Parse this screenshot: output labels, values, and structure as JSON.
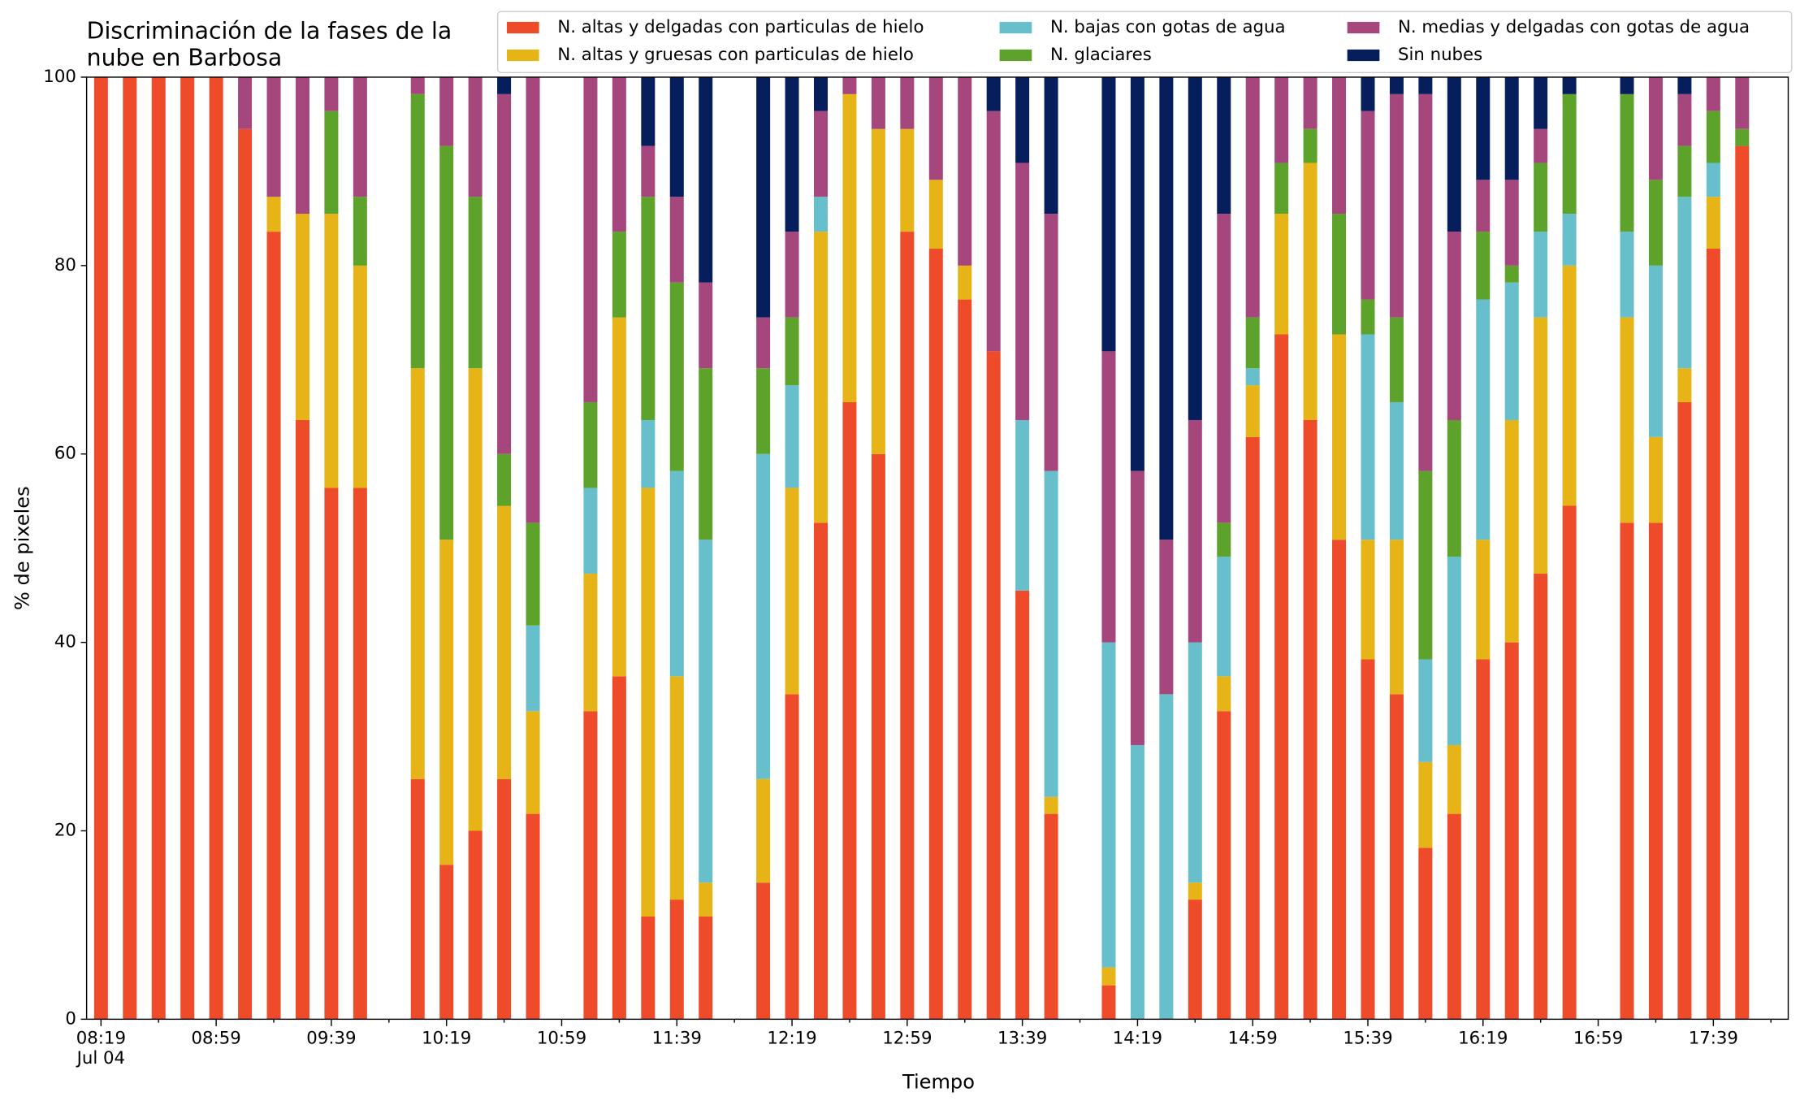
{
  "chart_data": {
    "type": "stacked_bar",
    "title": "Discriminación de la fases de la\nnube en Barbosa",
    "x_label": "Tiempo",
    "y_label": "% de pixeles",
    "x": [
      "08:19",
      "08:29",
      "08:39",
      "08:49",
      "08:59",
      "09:09",
      "09:19",
      "09:29",
      "09:39",
      "09:49",
      "10:09",
      "10:19",
      "10:29",
      "10:39",
      "10:49",
      "11:09",
      "11:19",
      "11:29",
      "11:39",
      "11:49",
      "12:09",
      "12:19",
      "12:29",
      "12:39",
      "12:49",
      "12:59",
      "13:09",
      "13:19",
      "13:29",
      "13:39",
      "13:49",
      "14:09",
      "14:19",
      "14:29",
      "14:39",
      "14:49",
      "14:59",
      "15:09",
      "15:19",
      "15:29",
      "15:39",
      "15:49",
      "15:59",
      "16:09",
      "16:19",
      "16:29",
      "16:39",
      "16:49",
      "17:09",
      "17:19",
      "17:29",
      "17:39",
      "17:49"
    ],
    "series": [
      {
        "name": "N. altas y delgadas con particulas de hielo",
        "color": "#ee4b2b",
        "values": [
          100,
          100,
          100,
          100,
          100,
          94.5,
          83.6,
          63.6,
          56.4,
          56.4,
          25.5,
          16.4,
          20,
          25.5,
          21.8,
          32.7,
          36.4,
          10.9,
          12.7,
          10.9,
          14.5,
          34.5,
          52.7,
          65.5,
          60,
          83.6,
          81.8,
          76.4,
          70.9,
          45.5,
          21.8,
          3.6,
          0,
          0,
          12.7,
          32.7,
          61.8,
          72.7,
          63.6,
          50.9,
          38.2,
          34.5,
          18.2,
          21.8,
          38.2,
          40,
          47.3,
          54.5,
          52.7,
          52.7,
          65.5,
          81.8,
          92.7
        ]
      },
      {
        "name": "N. altas y gruesas con particulas de hielo",
        "color": "#e6b416",
        "values": [
          0,
          0,
          0,
          0,
          0,
          0,
          3.7,
          21.9,
          29.1,
          23.6,
          43.6,
          34.5,
          49.1,
          29,
          10.9,
          14.6,
          38.1,
          45.5,
          23.7,
          3.6,
          11,
          21.9,
          30.9,
          32.7,
          34.5,
          10.9,
          7.3,
          3.6,
          0,
          0,
          1.8,
          1.9,
          0,
          0,
          1.8,
          3.7,
          5.5,
          12.8,
          27.3,
          21.8,
          12.7,
          16.4,
          9.1,
          7.3,
          12.7,
          23.6,
          27.2,
          25.5,
          21.8,
          9.1,
          3.6,
          5.5,
          0
        ]
      },
      {
        "name": "N. bajas con gotas de agua",
        "color": "#67bfcc",
        "values": [
          0,
          0,
          0,
          0,
          0,
          0,
          0,
          0,
          0,
          0,
          0,
          0,
          0,
          0,
          9.1,
          9.1,
          0,
          7.2,
          21.8,
          36.4,
          34.5,
          10.9,
          3.7,
          0,
          0,
          0,
          0,
          0,
          0,
          18.1,
          34.6,
          34.5,
          29.1,
          34.5,
          25.5,
          12.7,
          1.8,
          0,
          0,
          0,
          21.8,
          14.6,
          10.9,
          20,
          25.5,
          14.6,
          9.1,
          5.5,
          9.1,
          18.2,
          18.2,
          3.6,
          0
        ]
      },
      {
        "name": "N. glaciares",
        "color": "#5da22b",
        "values": [
          0,
          0,
          0,
          0,
          0,
          0,
          0,
          0,
          10.9,
          7.3,
          29.1,
          41.8,
          18.2,
          5.5,
          10.9,
          9.1,
          9.1,
          23.7,
          20,
          18.2,
          9.1,
          7.2,
          0,
          0,
          0,
          0,
          0,
          0,
          0,
          0,
          0,
          0,
          0,
          0,
          0,
          3.6,
          5.4,
          5.4,
          3.6,
          12.8,
          3.7,
          9,
          20,
          14.5,
          7.2,
          1.8,
          7.3,
          12.7,
          14.6,
          9.1,
          5.4,
          5.5,
          1.8
        ]
      },
      {
        "name": "N. medias y delgadas con gotas de agua",
        "color": "#a5467d",
        "values": [
          0,
          0,
          0,
          0,
          0,
          5.5,
          12.7,
          14.5,
          3.6,
          12.7,
          1.8,
          7.3,
          12.7,
          38.2,
          47.3,
          34.5,
          16.4,
          5.4,
          9.1,
          9.1,
          5.4,
          9.1,
          9.1,
          1.8,
          5.5,
          5.5,
          10.9,
          20,
          25.5,
          27.3,
          27.3,
          30.9,
          29.1,
          16.4,
          23.6,
          32.8,
          25.5,
          9.1,
          5.5,
          14.5,
          20,
          23.7,
          40,
          20,
          5.5,
          9.1,
          3.6,
          0,
          0,
          10.9,
          5.5,
          3.6,
          5.5
        ]
      },
      {
        "name": "Sin nubes",
        "color": "#061f5c",
        "values": [
          0,
          0,
          0,
          0,
          0,
          0,
          0,
          0,
          0,
          0,
          0,
          0,
          0,
          1.8,
          0,
          0,
          0,
          7.3,
          12.7,
          21.8,
          25.5,
          16.4,
          3.6,
          0,
          0,
          0,
          0,
          0,
          3.6,
          9.1,
          14.5,
          29.1,
          41.8,
          49.1,
          36.4,
          14.5,
          0,
          0,
          0,
          0,
          3.6,
          1.8,
          1.8,
          16.4,
          10.9,
          10.9,
          5.5,
          1.8,
          1.8,
          0,
          1.8,
          0,
          0
        ]
      }
    ],
    "xlim": [
      "08:14",
      "18:05"
    ],
    "xticks": [
      {
        "value": "08:19",
        "label": "08:19\nJul 04"
      },
      "08:59",
      "09:39",
      "10:19",
      "10:59",
      "11:39",
      "12:19",
      "12:59",
      "13:39",
      "14:19",
      "14:59",
      "15:39",
      "16:19",
      "16:59",
      "17:39"
    ],
    "xminorticks": [
      "08:39",
      "09:19",
      "09:59",
      "10:39",
      "11:19",
      "11:59",
      "12:39",
      "13:19",
      "13:59",
      "14:39",
      "15:19",
      "15:59",
      "16:39",
      "17:19",
      "17:59"
    ],
    "ylim": [
      0,
      100
    ],
    "yticks": [
      0,
      20,
      40,
      60,
      80,
      100
    ],
    "grid": false,
    "legend": "top right"
  }
}
